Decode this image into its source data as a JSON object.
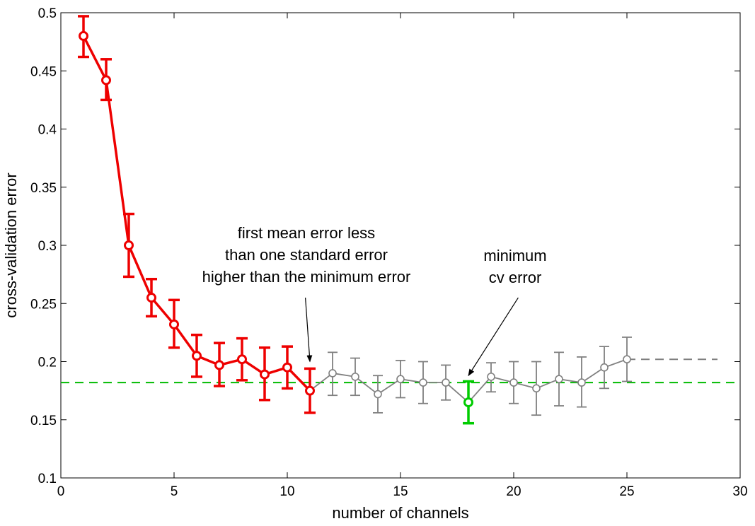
{
  "chart_data": {
    "type": "line",
    "xlabel": "number of channels",
    "ylabel": "cross-validation error",
    "xlim": [
      0,
      30
    ],
    "ylim": [
      0.1,
      0.5
    ],
    "xticks": [
      0,
      5,
      10,
      15,
      20,
      25,
      30
    ],
    "yticks": [
      0.1,
      0.15,
      0.2,
      0.25,
      0.3,
      0.35,
      0.4,
      0.45,
      0.5
    ],
    "xtick_labels": [
      "0",
      "5",
      "10",
      "15",
      "20",
      "25",
      "30"
    ],
    "ytick_labels": [
      "0.1",
      "0.15",
      "0.2",
      "0.25",
      "0.3",
      "0.35",
      "0.4",
      "0.45",
      "0.5"
    ],
    "grid": false,
    "series": [
      {
        "color": "#ee0000",
        "x": [
          1,
          2,
          3,
          4,
          5,
          6,
          7,
          8,
          9,
          10,
          11
        ],
        "y": [
          0.48,
          0.442,
          0.3,
          0.255,
          0.232,
          0.205,
          0.197,
          0.202,
          0.189,
          0.195,
          0.175
        ],
        "err_low": [
          0.462,
          0.425,
          0.273,
          0.239,
          0.212,
          0.187,
          0.179,
          0.184,
          0.167,
          0.177,
          0.156
        ],
        "err_high": [
          0.497,
          0.46,
          0.327,
          0.271,
          0.253,
          0.223,
          0.216,
          0.22,
          0.212,
          0.213,
          0.194
        ]
      },
      {
        "color": "#808080",
        "x": [
          11,
          12,
          13,
          14,
          15,
          16,
          17,
          18,
          19,
          20,
          21,
          22,
          23,
          24,
          25
        ],
        "y": [
          0.175,
          0.19,
          0.187,
          0.172,
          0.185,
          0.182,
          0.182,
          0.165,
          0.187,
          0.182,
          0.177,
          0.185,
          0.182,
          0.195,
          0.202
        ],
        "err_low": [
          null,
          0.171,
          0.171,
          0.156,
          0.169,
          0.164,
          0.167,
          null,
          0.174,
          0.164,
          0.154,
          0.162,
          0.161,
          0.177,
          0.183
        ],
        "err_high": [
          null,
          0.208,
          0.203,
          0.188,
          0.201,
          0.2,
          0.197,
          null,
          0.199,
          0.2,
          0.2,
          0.208,
          0.204,
          0.213,
          0.221
        ]
      },
      {
        "color": "#00cc00",
        "x": [
          18
        ],
        "y": [
          0.165
        ],
        "err_low": [
          0.147
        ],
        "err_high": [
          0.183
        ]
      }
    ],
    "reference_lines": [
      {
        "color": "#00bb00",
        "style": "dashed",
        "y": 0.182,
        "x_range": [
          0,
          30
        ]
      },
      {
        "color": "#808080",
        "style": "dashed",
        "y": 0.202,
        "x_range": [
          25,
          29
        ]
      }
    ],
    "annotations": [
      {
        "lines": [
          "first mean error less",
          "than one standard error",
          "higher than the minimum error"
        ],
        "arrow_from": [
          10.8,
          0.255
        ],
        "arrow_to": [
          11,
          0.2
        ]
      },
      {
        "lines": [
          "minimum",
          "cv error"
        ],
        "arrow_from": [
          20.2,
          0.255
        ],
        "arrow_to": [
          18,
          0.188
        ]
      }
    ]
  }
}
